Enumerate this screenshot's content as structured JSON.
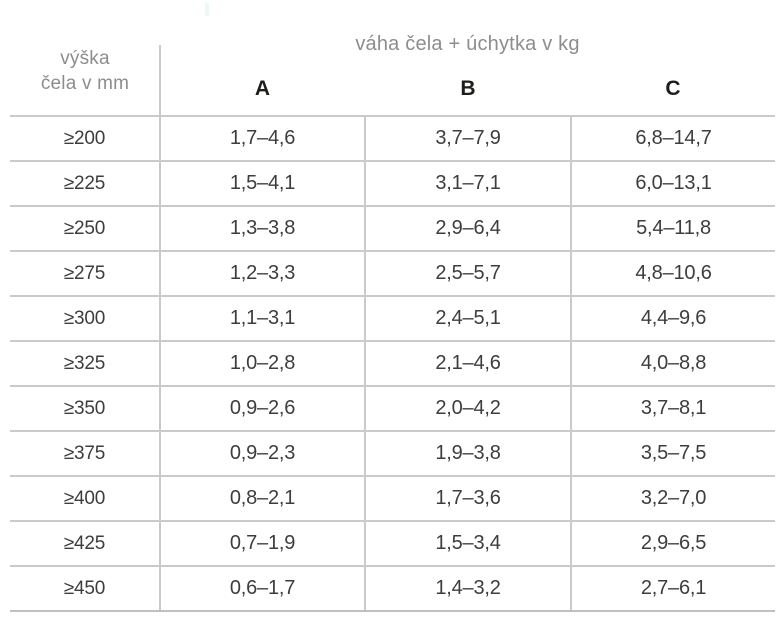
{
  "chart_data": {
    "type": "table",
    "title": "váha čela + úchytka v kg",
    "row_header": "výška čela v mm",
    "row_header_lines": [
      "výška",
      "čela v mm"
    ],
    "columns": [
      "A",
      "B",
      "C"
    ],
    "rows": [
      [
        "≥200",
        "1,7–4,6",
        "3,7–7,9",
        "6,8–14,7"
      ],
      [
        "≥225",
        "1,5–4,1",
        "3,1–7,1",
        "6,0–13,1"
      ],
      [
        "≥250",
        "1,3–3,8",
        "2,9–6,4",
        "5,4–11,8"
      ],
      [
        "≥275",
        "1,2–3,3",
        "2,5–5,7",
        "4,8–10,6"
      ],
      [
        "≥300",
        "1,1–3,1",
        "2,4–5,1",
        "4,4–9,6"
      ],
      [
        "≥325",
        "1,0–2,8",
        "2,1–4,6",
        "4,0–8,8"
      ],
      [
        "≥350",
        "0,9–2,6",
        "2,0–4,2",
        "3,7–8,1"
      ],
      [
        "≥375",
        "0,9–2,3",
        "1,9–3,8",
        "3,5–7,5"
      ],
      [
        "≥400",
        "0,8–2,1",
        "1,7–3,6",
        "3,2–7,0"
      ],
      [
        "≥425",
        "0,7–1,9",
        "1,5–3,4",
        "2,9–6,5"
      ],
      [
        "≥450",
        "0,6–1,7",
        "1,4–3,2",
        "2,7–6,1"
      ]
    ],
    "layout": {
      "grid": "horizontal-and-vertical-light-gray",
      "legend_position": "none",
      "colors": {
        "grid_line": "#cacaca",
        "header_text": "#8d8d8d",
        "column_letter_text": "#1d1d1b",
        "cell_text": "#3d3d3c",
        "background": "#ffffff"
      }
    }
  }
}
